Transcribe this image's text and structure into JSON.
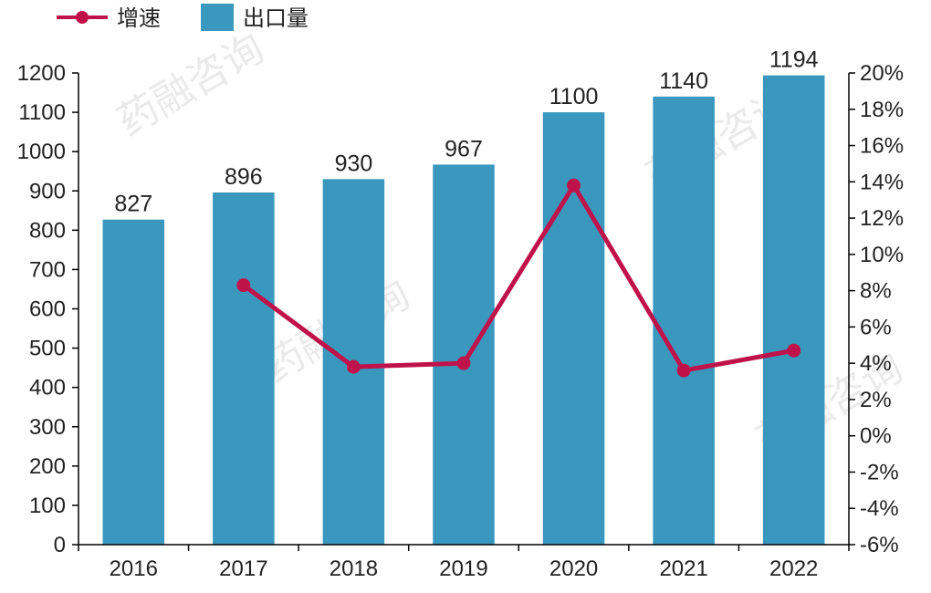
{
  "legend": {
    "line_label": "增速",
    "bar_label": "出口量"
  },
  "watermark": {
    "text": "药融咨询"
  },
  "colors": {
    "bar": "#3a97bd",
    "line": "#c0124a",
    "axis": "#000000"
  },
  "chart_data": {
    "type": "bar",
    "categories": [
      "2016",
      "2017",
      "2018",
      "2019",
      "2020",
      "2021",
      "2022"
    ],
    "series": [
      {
        "name": "出口量",
        "type": "bar",
        "axis": "left",
        "values": [
          827,
          896,
          930,
          967,
          1100,
          1140,
          1194
        ]
      },
      {
        "name": "增速",
        "type": "line",
        "axis": "right",
        "values": [
          null,
          8.3,
          3.8,
          4.0,
          13.8,
          3.6,
          4.7
        ]
      }
    ],
    "y_left": {
      "min": 0,
      "max": 1200,
      "step": 100
    },
    "y_right": {
      "min": -6,
      "max": 20,
      "step": 2,
      "unit": "%"
    },
    "data_labels": [
      "827",
      "896",
      "930",
      "967",
      "1100",
      "1140",
      "1194"
    ],
    "title": "",
    "xlabel": "",
    "ylabel": "",
    "legend_position": "top-left",
    "grid": false
  }
}
